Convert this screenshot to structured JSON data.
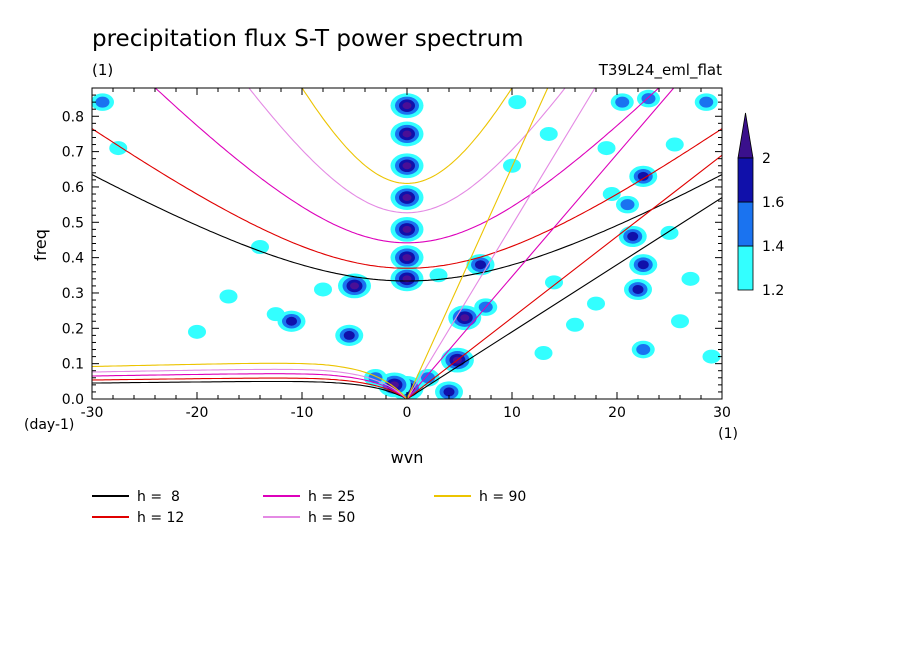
{
  "chart_data": {
    "type": "heatmap",
    "title": "precipitation flux S-T power spectrum",
    "subtitle_left": "(1)",
    "subtitle_right": "T39L24_eml_flat",
    "xlabel": "wvn",
    "ylabel": "freq",
    "x_unit": "(1)",
    "y_unit": "(day-1)",
    "xlim": [
      -30,
      30
    ],
    "ylim": [
      0,
      0.88
    ],
    "x_ticks": [
      {
        "value": -30,
        "label": "-30"
      },
      {
        "value": -20,
        "label": "-20"
      },
      {
        "value": -10,
        "label": "-10"
      },
      {
        "value": 0,
        "label": "0"
      },
      {
        "value": 10,
        "label": "10"
      },
      {
        "value": 20,
        "label": "20"
      },
      {
        "value": 30,
        "label": "30"
      }
    ],
    "y_ticks": [
      {
        "value": 0,
        "label": "0.0"
      },
      {
        "value": 0.1,
        "label": "0.1"
      },
      {
        "value": 0.2,
        "label": "0.2"
      },
      {
        "value": 0.3,
        "label": "0.3"
      },
      {
        "value": 0.4,
        "label": "0.4"
      },
      {
        "value": 0.5,
        "label": "0.5"
      },
      {
        "value": 0.6,
        "label": "0.6"
      },
      {
        "value": 0.7,
        "label": "0.7"
      },
      {
        "value": 0.8,
        "label": "0.8"
      }
    ],
    "colorbar": {
      "levels": [
        {
          "label": "1.2",
          "color": "#33ffff"
        },
        {
          "label": "1.4",
          "color": "#1a73f0"
        },
        {
          "label": "1.6",
          "color": "#1010aa"
        },
        {
          "label": "2",
          "color": "#4b0f96"
        }
      ],
      "overflow_color": "#3a108c"
    },
    "series": [
      {
        "name": "h =  8",
        "color": "#000000",
        "kelvin_end": [
          30,
          0.57
        ],
        "ig_min_freq": 0.334,
        "ig_at_minus30": 0.635,
        "mrg_peak": 0.052
      },
      {
        "name": "h = 12",
        "color": "#e00000",
        "kelvin_end": [
          30,
          0.69
        ],
        "ig_min_freq": 0.37,
        "ig_at_minus30": 0.765,
        "mrg_peak": 0.062
      },
      {
        "name": "h = 25",
        "color": "#dd00bb",
        "kelvin_end": [
          25.4,
          0.88
        ],
        "ig_min_freq": 0.442,
        "ig_at_minus30": 1.05,
        "mrg_peak": 0.075
      },
      {
        "name": "h = 50",
        "color": "#e48ae4",
        "kelvin_end": [
          17.9,
          0.88
        ],
        "ig_min_freq": 0.527,
        "ig_at_minus30": 1.5,
        "mrg_peak": 0.088
      },
      {
        "name": "h = 90",
        "color": "#ecc400",
        "kelvin_end": [
          13.4,
          0.88
        ],
        "ig_min_freq": 0.61,
        "ig_at_minus30": 2.0,
        "mrg_peak": 0.106
      }
    ],
    "contour_blobs": [
      {
        "x": 0,
        "y": 0.83,
        "level": 4
      },
      {
        "x": 0,
        "y": 0.75,
        "level": 4
      },
      {
        "x": 0,
        "y": 0.66,
        "level": 4
      },
      {
        "x": 0,
        "y": 0.57,
        "level": 4
      },
      {
        "x": 0,
        "y": 0.48,
        "level": 4
      },
      {
        "x": 0,
        "y": 0.4,
        "level": 4
      },
      {
        "x": 0,
        "y": 0.34,
        "level": 4
      },
      {
        "x": 0,
        "y": 0.03,
        "level": 4
      },
      {
        "x": -1.2,
        "y": 0.04,
        "level": 4
      },
      {
        "x": -5,
        "y": 0.32,
        "level": 4
      },
      {
        "x": -5.5,
        "y": 0.18,
        "level": 3
      },
      {
        "x": -11,
        "y": 0.22,
        "level": 3
      },
      {
        "x": 5.5,
        "y": 0.23,
        "level": 4
      },
      {
        "x": 4.8,
        "y": 0.11,
        "level": 4
      },
      {
        "x": 4,
        "y": 0.02,
        "level": 3
      },
      {
        "x": 7,
        "y": 0.38,
        "level": 3
      },
      {
        "x": 7.5,
        "y": 0.26,
        "level": 2
      },
      {
        "x": 22,
        "y": 0.31,
        "level": 3
      },
      {
        "x": 21.5,
        "y": 0.46,
        "level": 3
      },
      {
        "x": 22.5,
        "y": 0.63,
        "level": 3
      },
      {
        "x": 22.5,
        "y": 0.14,
        "level": 2
      },
      {
        "x": 22.5,
        "y": 0.38,
        "level": 3
      },
      {
        "x": 21,
        "y": 0.55,
        "level": 2
      },
      {
        "x": 23,
        "y": 0.85,
        "level": 2
      },
      {
        "x": 20.5,
        "y": 0.84,
        "level": 2
      },
      {
        "x": 28.5,
        "y": 0.84,
        "level": 2
      },
      {
        "x": -29,
        "y": 0.84,
        "level": 2
      },
      {
        "x": -27.5,
        "y": 0.71,
        "level": 1
      },
      {
        "x": -8,
        "y": 0.31,
        "level": 1
      },
      {
        "x": 3,
        "y": 0.35,
        "level": 1
      },
      {
        "x": 10.5,
        "y": 0.84,
        "level": 1
      },
      {
        "x": 16,
        "y": 0.21,
        "level": 1
      },
      {
        "x": 14,
        "y": 0.33,
        "level": 1
      },
      {
        "x": 18,
        "y": 0.27,
        "level": 1
      },
      {
        "x": 26,
        "y": 0.22,
        "level": 1
      },
      {
        "x": 25,
        "y": 0.47,
        "level": 1
      },
      {
        "x": 27,
        "y": 0.34,
        "level": 1
      },
      {
        "x": 25.5,
        "y": 0.72,
        "level": 1
      },
      {
        "x": 19,
        "y": 0.71,
        "level": 1
      },
      {
        "x": 13.5,
        "y": 0.75,
        "level": 1
      },
      {
        "x": 10,
        "y": 0.66,
        "level": 1
      },
      {
        "x": 2,
        "y": 0.06,
        "level": 2
      },
      {
        "x": -3,
        "y": 0.06,
        "level": 2
      },
      {
        "x": -20,
        "y": 0.19,
        "level": 1
      },
      {
        "x": -17,
        "y": 0.29,
        "level": 1
      },
      {
        "x": -14,
        "y": 0.43,
        "level": 1
      },
      {
        "x": -12.5,
        "y": 0.24,
        "level": 1
      },
      {
        "x": 13,
        "y": 0.13,
        "level": 1
      },
      {
        "x": 29,
        "y": 0.12,
        "level": 1
      },
      {
        "x": 19.5,
        "y": 0.58,
        "level": 1
      }
    ]
  }
}
